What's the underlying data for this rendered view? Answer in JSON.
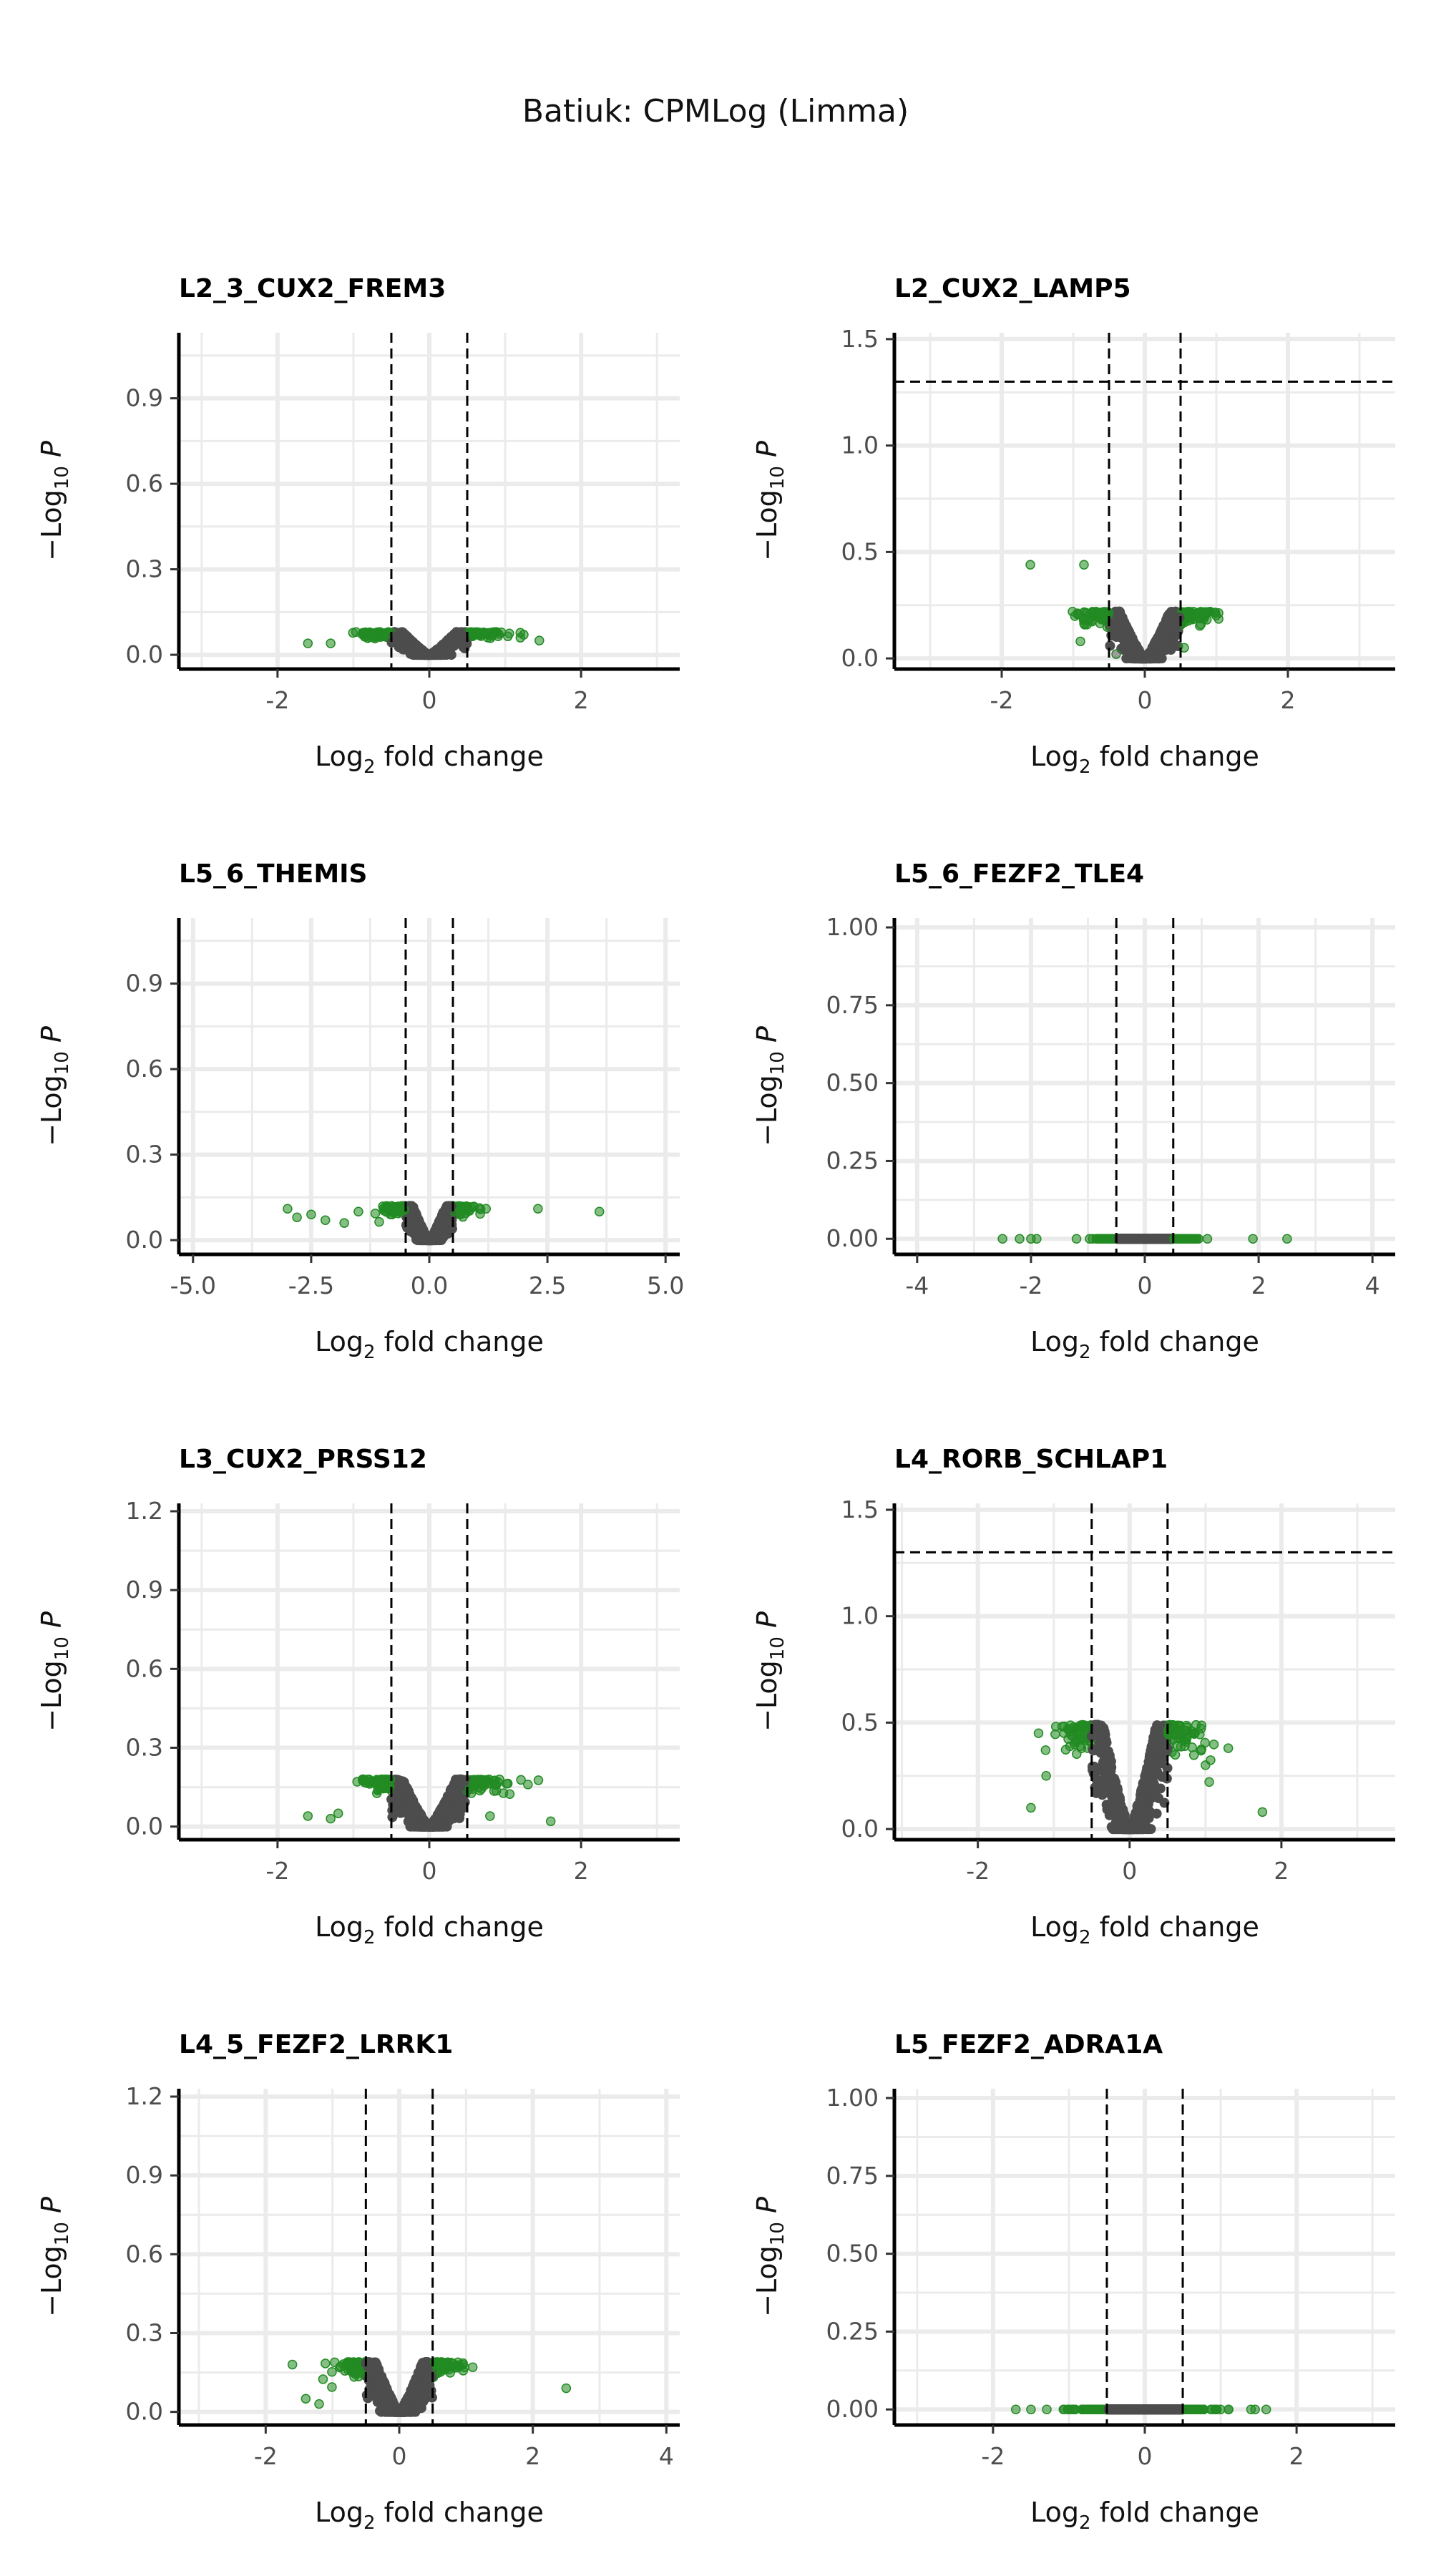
{
  "title": "Batiuk: CPMLog (Limma)",
  "colors": {
    "significant": "#228b22",
    "nonsignificant": "#4d4d4d",
    "grid": "#ebebeb",
    "axis": "#000000"
  },
  "chart_data": [
    {
      "type": "scatter",
      "title": "L2_3_CUX2_FREM3",
      "xlabel": "Log2 fold change",
      "ylabel": "−Log10 P",
      "xlim": [
        -3.3,
        3.3
      ],
      "ylim": [
        -0.05,
        1.13
      ],
      "xticks": [
        -2,
        0,
        2
      ],
      "yticks": [
        0,
        0.3,
        0.6,
        0.9
      ],
      "ytick_labels": [
        "0.0",
        "0.3",
        "0.6",
        "0.9"
      ],
      "fc_cutoff": 0.5,
      "p_cutoff_line": null,
      "cloud": {
        "vmax": 0.08,
        "sig_max_x": 1.4,
        "depth": 0.08
      },
      "outliers": [
        [
          1.45,
          0.05
        ],
        [
          -1.6,
          0.04
        ],
        [
          -1.3,
          0.04
        ],
        [
          1.2,
          0.06
        ]
      ]
    },
    {
      "type": "scatter",
      "title": "L2_CUX2_LAMP5",
      "xlabel": "Log2 fold change",
      "ylabel": "−Log10 P",
      "xlim": [
        -3.5,
        3.5
      ],
      "ylim": [
        -0.05,
        1.53
      ],
      "xticks": [
        -2,
        0,
        2
      ],
      "yticks": [
        0,
        0.5,
        1.0,
        1.5
      ],
      "ytick_labels": [
        "0.0",
        "0.5",
        "1.0",
        "1.5"
      ],
      "fc_cutoff": 0.5,
      "p_cutoff_line": 1.3,
      "cloud": {
        "vmax": 0.22,
        "sig_max_x": 1.9,
        "depth": 0.22
      },
      "outliers": [
        [
          -1.6,
          0.44
        ],
        [
          -0.85,
          0.44
        ],
        [
          0.55,
          0.05
        ],
        [
          -0.9,
          0.08
        ],
        [
          -0.4,
          0.02
        ]
      ]
    },
    {
      "type": "scatter",
      "title": "L5_6_THEMIS",
      "xlabel": "Log2 fold change",
      "ylabel": "−Log10 P",
      "xlim": [
        -5.3,
        5.3
      ],
      "ylim": [
        -0.05,
        1.13
      ],
      "xticks": [
        -5,
        -2.5,
        0,
        2.5,
        5
      ],
      "xtick_labels": [
        "-5.0",
        "-2.5",
        "0.0",
        "2.5",
        "5.0"
      ],
      "yticks": [
        0,
        0.3,
        0.6,
        0.9
      ],
      "ytick_labels": [
        "0.0",
        "0.3",
        "0.6",
        "0.9"
      ],
      "fc_cutoff": 0.5,
      "p_cutoff_line": null,
      "cloud": {
        "vmax": 0.12,
        "sig_max_x": 1.2,
        "depth": 0.12
      },
      "outliers": [
        [
          -3.0,
          0.11
        ],
        [
          -2.8,
          0.08
        ],
        [
          -2.5,
          0.09
        ],
        [
          -2.2,
          0.07
        ],
        [
          -1.8,
          0.06
        ],
        [
          -1.5,
          0.1
        ],
        [
          2.3,
          0.11
        ],
        [
          3.6,
          0.1
        ],
        [
          1.2,
          0.11
        ]
      ]
    },
    {
      "type": "scatter",
      "title": "L5_6_FEZF2_TLE4",
      "xlabel": "Log2 fold change",
      "ylabel": "−Log10 P",
      "xlim": [
        -4.4,
        4.4
      ],
      "ylim": [
        -0.05,
        1.03
      ],
      "xticks": [
        -4,
        -2,
        0,
        2,
        4
      ],
      "yticks": [
        0,
        0.25,
        0.5,
        0.75,
        1.0
      ],
      "ytick_labels": [
        "0.00",
        "0.25",
        "0.50",
        "0.75",
        "1.00"
      ],
      "fc_cutoff": 0.5,
      "p_cutoff_line": null,
      "cloud": {
        "vmax": 0.0,
        "sig_max_x": 1.0,
        "depth": 0.0
      },
      "outliers": [
        [
          -2.5,
          0.0
        ],
        [
          -2.2,
          0.0
        ],
        [
          -2.0,
          0.0
        ],
        [
          -1.9,
          0.0
        ],
        [
          -1.2,
          0.0
        ],
        [
          1.9,
          0.0
        ],
        [
          2.5,
          0.0
        ],
        [
          1.1,
          0.0
        ]
      ]
    },
    {
      "type": "scatter",
      "title": "L3_CUX2_PRSS12",
      "xlabel": "Log2 fold change",
      "ylabel": "−Log10 P",
      "xlim": [
        -3.3,
        3.3
      ],
      "ylim": [
        -0.05,
        1.23
      ],
      "xticks": [
        -2,
        0,
        2
      ],
      "yticks": [
        0,
        0.3,
        0.6,
        0.9,
        1.2
      ],
      "ytick_labels": [
        "0.0",
        "0.3",
        "0.6",
        "0.9",
        "1.2"
      ],
      "fc_cutoff": 0.5,
      "p_cutoff_line": null,
      "cloud": {
        "vmax": 0.18,
        "sig_max_x": 1.5,
        "depth": 0.18
      },
      "outliers": [
        [
          -1.6,
          0.04
        ],
        [
          -1.3,
          0.03
        ],
        [
          1.6,
          0.02
        ],
        [
          1.3,
          0.16
        ],
        [
          -1.2,
          0.05
        ],
        [
          0.8,
          0.04
        ]
      ]
    },
    {
      "type": "scatter",
      "title": "L4_RORB_SCHLAP1",
      "xlabel": "Log2 fold change",
      "ylabel": "−Log10 P",
      "xlim": [
        -3.1,
        3.5
      ],
      "ylim": [
        -0.05,
        1.53
      ],
      "xticks": [
        -2,
        0,
        2
      ],
      "yticks": [
        0,
        0.5,
        1.0,
        1.5
      ],
      "ytick_labels": [
        "0.0",
        "0.5",
        "1.0",
        "1.5"
      ],
      "fc_cutoff": 0.5,
      "p_cutoff_line": 1.3,
      "cloud": {
        "vmax": 0.49,
        "sig_max_x": 1.3,
        "depth": 0.49
      },
      "outliers": [
        [
          1.75,
          0.08
        ],
        [
          1.3,
          0.38
        ],
        [
          -1.3,
          0.1
        ],
        [
          -1.1,
          0.25
        ],
        [
          1.0,
          0.3
        ],
        [
          -1.2,
          0.45
        ]
      ]
    },
    {
      "type": "scatter",
      "title": "L4_5_FEZF2_LRRK1",
      "xlabel": "Log2 fold change",
      "ylabel": "−Log10 P",
      "xlim": [
        -3.3,
        4.2
      ],
      "ylim": [
        -0.05,
        1.23
      ],
      "xticks": [
        -2,
        0,
        2,
        4
      ],
      "yticks": [
        0,
        0.3,
        0.6,
        0.9,
        1.2
      ],
      "ytick_labels": [
        "0.0",
        "0.3",
        "0.6",
        "0.9",
        "1.2"
      ],
      "fc_cutoff": 0.5,
      "p_cutoff_line": null,
      "cloud": {
        "vmax": 0.19,
        "sig_max_x": 1.2,
        "depth": 0.19
      },
      "outliers": [
        [
          2.5,
          0.09
        ],
        [
          -1.4,
          0.05
        ],
        [
          -1.2,
          0.03
        ],
        [
          1.1,
          0.17
        ],
        [
          -1.6,
          0.18
        ]
      ]
    },
    {
      "type": "scatter",
      "title": "L5_FEZF2_ADRA1A",
      "xlabel": "Log2 fold change",
      "ylabel": "−Log10 P",
      "xlim": [
        -3.3,
        3.3
      ],
      "ylim": [
        -0.05,
        1.03
      ],
      "xticks": [
        -2,
        0,
        2
      ],
      "yticks": [
        0,
        0.25,
        0.5,
        0.75,
        1.0
      ],
      "ytick_labels": [
        "0.00",
        "0.25",
        "0.50",
        "0.75",
        "1.00"
      ],
      "fc_cutoff": 0.5,
      "p_cutoff_line": null,
      "cloud": {
        "vmax": 0.0,
        "sig_max_x": 1.6,
        "depth": 0.0
      },
      "outliers": [
        [
          -1.7,
          0.0
        ],
        [
          1.6,
          0.0
        ],
        [
          -1.5,
          0.0
        ],
        [
          1.4,
          0.0
        ]
      ]
    }
  ]
}
